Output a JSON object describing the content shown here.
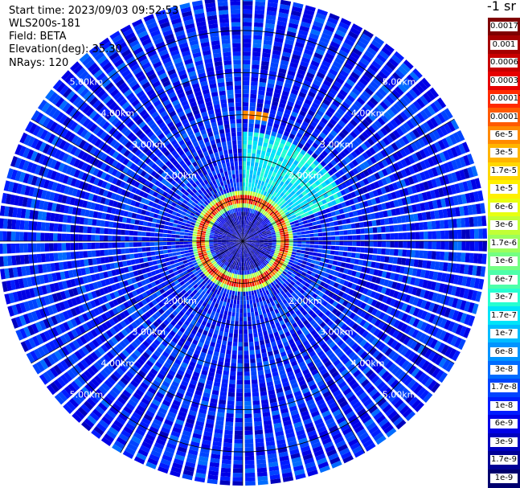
{
  "header": {
    "start_time": "Start time: 2023/09/03 09:52:53",
    "instrument": "WLS200s-181",
    "field": "Field: BETA",
    "elevation": "Elevation(deg): 35.30",
    "nrays": "NRays: 120"
  },
  "colorbar": {
    "unit": "-1 sr",
    "ticks": [
      "0.0017",
      "0.001",
      "0.0006",
      "0.0003",
      "0.00017",
      "0.0001",
      "6e-5",
      "3e-5",
      "1.7e-5",
      "1e-5",
      "6e-6",
      "3e-6",
      "1.7e-6",
      "1e-6",
      "6e-7",
      "3e-7",
      "1.7e-7",
      "1e-7",
      "6e-8",
      "3e-8",
      "1.7e-8",
      "1e-8",
      "6e-9",
      "3e-9",
      "1.7e-9",
      "1e-9"
    ],
    "colors": [
      "#7f0000",
      "#a50000",
      "#c80000",
      "#e60000",
      "#ff2a00",
      "#ff5a00",
      "#ff8a00",
      "#ffb400",
      "#ffd700",
      "#fff000",
      "#e8ff10",
      "#c2ff35",
      "#9bff5c",
      "#74ff83",
      "#4dffaa",
      "#26ffd1",
      "#00e4f8",
      "#00bcff",
      "#0094ff",
      "#006cff",
      "#0044ff",
      "#001cff",
      "#0000e6",
      "#0000be",
      "#000096",
      "#00006e"
    ]
  },
  "chart_data": {
    "type": "heatmap",
    "subtype": "polar-ppi",
    "field": "BETA",
    "elevation_deg": 35.3,
    "n_rays": 120,
    "range_rings_km": [
      1,
      2,
      3,
      4,
      5
    ],
    "ring_labels": [
      "2.00km",
      "3.00km",
      "4.00km",
      "5.00km"
    ],
    "max_range_km": 5.8,
    "colorscale": "log",
    "value_range": [
      1e-09,
      0.0017
    ],
    "background_level": 1e-08,
    "sector_enhanced": {
      "azimuth_deg": [
        0,
        70
      ],
      "range_km": [
        0.8,
        2.6
      ],
      "level": 1.7e-07
    },
    "ring_feature": {
      "range_km": 1.0,
      "level": 0.0001,
      "note": "high-backscatter ring around instrument"
    },
    "cloud_patch": {
      "azimuth_deg": [
        0,
        12
      ],
      "range_km": [
        2.9,
        3.1
      ],
      "level": 6e-05
    }
  }
}
